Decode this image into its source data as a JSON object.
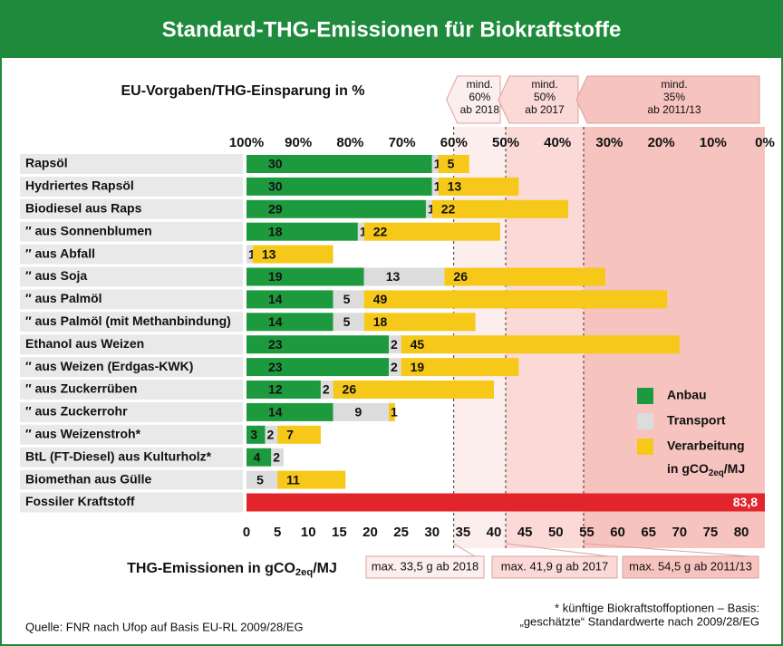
{
  "chart_data": {
    "type": "stacked_barh",
    "title": "Standard-THG-Emissionen für Biokraftstoffe",
    "x2label": "EU-Vorgaben/THG-Einsparung in %",
    "xlabel": {
      "text": "THG-Emissionen in gCO",
      "sub": "2eq",
      "suffix": "/MJ"
    },
    "categories": [
      "Rapsöl",
      "Hydriertes Rapsöl",
      "Biodiesel aus Raps",
      "″ aus Sonnenblumen",
      "″ aus Abfall",
      "″ aus Soja",
      "″ aus Palmöl",
      "″ aus Palmöl (mit Methanbindung)",
      "Ethanol aus Weizen",
      "″ aus Weizen (Erdgas-KWK)",
      "″ aus Zuckerrüben",
      "″ aus Zuckerrohr",
      "″ aus Weizenstroh*",
      "BtL (FT-Diesel) aus Kulturholz*",
      "Biomethan aus Gülle"
    ],
    "series": [
      {
        "name": "Anbau",
        "color": "#1e9a3e",
        "values": [
          30,
          30,
          29,
          18,
          null,
          19,
          14,
          14,
          23,
          23,
          12,
          14,
          3,
          4,
          null
        ]
      },
      {
        "name": "Transport",
        "color": "#dcdcdc",
        "values": [
          1,
          1,
          1,
          1,
          1,
          13,
          5,
          5,
          2,
          2,
          2,
          9,
          2,
          2,
          5
        ]
      },
      {
        "name": "Verarbeitung",
        "color": "#f6c81a",
        "values": [
          5,
          13,
          22,
          22,
          13,
          26,
          49,
          18,
          45,
          19,
          26,
          1,
          7,
          null,
          11
        ]
      }
    ],
    "legend_note": {
      "text": "in gCO",
      "sub": "2eq",
      "suffix": "/MJ"
    },
    "reference": {
      "name": "Fossiler Kraftstoff",
      "value": 83.8,
      "value_label": "83,8",
      "color": "#e2242b"
    },
    "xlim": [
      0,
      83.8
    ],
    "xticks": [
      0,
      5,
      10,
      15,
      20,
      25,
      30,
      35,
      40,
      45,
      50,
      55,
      60,
      65,
      70,
      75,
      80
    ],
    "x2lim": [
      100,
      0
    ],
    "x2ticks": [
      {
        "value": 100,
        "label": "100%"
      },
      {
        "value": 90,
        "label": "90%"
      },
      {
        "value": 80,
        "label": "80%"
      },
      {
        "value": 70,
        "label": "70%"
      },
      {
        "value": 60,
        "label": "60%"
      },
      {
        "value": 50,
        "label": "50%"
      },
      {
        "value": 40,
        "label": "40%"
      },
      {
        "value": 30,
        "label": "30%"
      },
      {
        "value": 20,
        "label": "20%"
      },
      {
        "value": 10,
        "label": "10%"
      },
      {
        "value": 0,
        "label": "0%"
      }
    ],
    "thresholds": [
      {
        "value": 33.5,
        "top_label": [
          "mind.",
          "60%",
          "ab 2018"
        ],
        "bottom_label": "max. 33,5 g ab 2018",
        "color": "#fdeeee"
      },
      {
        "value": 41.9,
        "top_label": [
          "mind.",
          "50%",
          "ab 2017"
        ],
        "bottom_label": "max. 41,9 g ab 2017",
        "color": "#fad9d7"
      },
      {
        "value": 54.5,
        "top_label": [
          "mind.",
          "35%",
          "ab 2011/13"
        ],
        "bottom_label": "max. 54,5 g ab 2011/13",
        "color": "#f6c3be"
      }
    ],
    "source": "Quelle: FNR nach Ufop auf Basis EU-RL 2009/28/EG",
    "footnote": [
      "* künftige Biokraftstoffoptionen – Basis:",
      "„geschätzte“ Standardwerte nach 2009/28/EG"
    ]
  }
}
